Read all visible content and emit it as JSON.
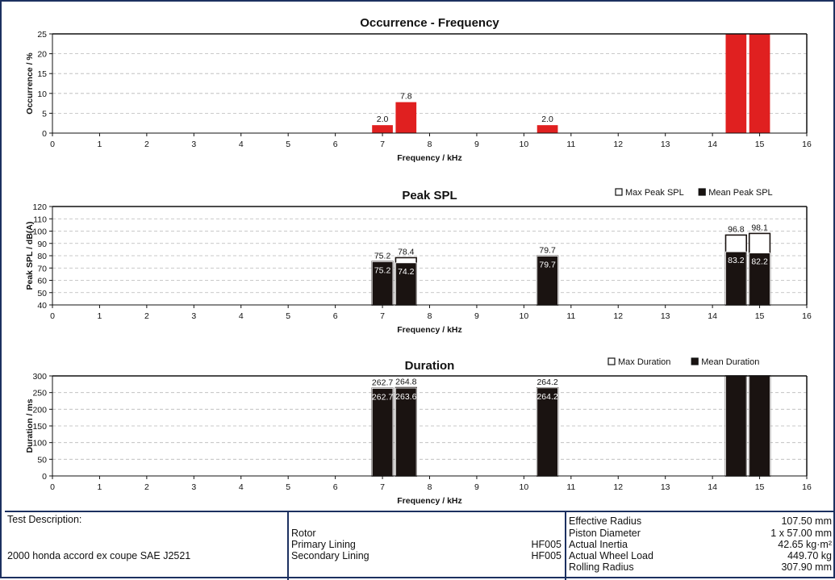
{
  "chart_data": [
    {
      "type": "bar",
      "title": "Occurrence - Frequency",
      "xlabel": "Frequency / kHz",
      "ylabel": "Occurrence / %",
      "xlim": [
        0,
        16
      ],
      "ylim": [
        0,
        25
      ],
      "xticks": [
        0,
        1,
        2,
        3,
        4,
        5,
        6,
        7,
        8,
        9,
        10,
        11,
        12,
        13,
        14,
        15,
        16
      ],
      "yticks": [
        0,
        5,
        10,
        15,
        20,
        25
      ],
      "grid": true,
      "legend": "none",
      "color": "#e02020",
      "series": [
        {
          "values": [
            {
              "x": 7.0,
              "value": 2.0,
              "label": "2.0"
            },
            {
              "x": 7.5,
              "value": 7.8,
              "label": "7.8"
            },
            {
              "x": 10.5,
              "value": 2.0,
              "label": "2.0"
            },
            {
              "x": 14.5,
              "value": 25,
              "label": ""
            },
            {
              "x": 15.0,
              "value": 25,
              "label": ""
            }
          ]
        }
      ]
    },
    {
      "type": "bar",
      "title": "Peak SPL",
      "xlabel": "Frequency / kHz",
      "ylabel": "Peak SPL / dB(A)",
      "xlim": [
        0,
        16
      ],
      "ylim": [
        40,
        120
      ],
      "xticks": [
        0,
        1,
        2,
        3,
        4,
        5,
        6,
        7,
        8,
        9,
        10,
        11,
        12,
        13,
        14,
        15,
        16
      ],
      "yticks": [
        40,
        50,
        60,
        70,
        80,
        90,
        100,
        110,
        120
      ],
      "grid": true,
      "legend": "top-right",
      "series": [
        {
          "name": "Max Peak SPL",
          "color": "#ffffff",
          "values": [
            {
              "x": 7.0,
              "value": 75.2,
              "label": "75.2"
            },
            {
              "x": 7.5,
              "value": 78.4,
              "label": "78.4"
            },
            {
              "x": 10.5,
              "value": 79.7,
              "label": "79.7"
            },
            {
              "x": 14.5,
              "value": 96.8,
              "label": "96.8"
            },
            {
              "x": 15.0,
              "value": 98.1,
              "label": "98.1"
            }
          ]
        },
        {
          "name": "Mean Peak SPL",
          "color": "#1a1311",
          "values": [
            {
              "x": 7.0,
              "value": 75.2,
              "label": "75.2"
            },
            {
              "x": 7.5,
              "value": 74.2,
              "label": "74.2"
            },
            {
              "x": 10.5,
              "value": 79.7,
              "label": "79.7"
            },
            {
              "x": 14.5,
              "value": 83.2,
              "label": "83.2"
            },
            {
              "x": 15.0,
              "value": 82.2,
              "label": "82.2"
            }
          ]
        }
      ]
    },
    {
      "type": "bar",
      "title": "Duration",
      "xlabel": "Frequency / kHz",
      "ylabel": "Duration / ms",
      "xlim": [
        0,
        16
      ],
      "ylim": [
        0,
        300
      ],
      "xticks": [
        0,
        1,
        2,
        3,
        4,
        5,
        6,
        7,
        8,
        9,
        10,
        11,
        12,
        13,
        14,
        15,
        16
      ],
      "yticks": [
        0,
        50,
        100,
        150,
        200,
        250,
        300
      ],
      "grid": true,
      "legend": "top-right",
      "series": [
        {
          "name": "Max Duration",
          "color": "#ffffff",
          "values": [
            {
              "x": 7.0,
              "value": 262.7,
              "label": "262.7"
            },
            {
              "x": 7.5,
              "value": 264.8,
              "label": "264.8"
            },
            {
              "x": 10.5,
              "value": 264.2,
              "label": "264.2"
            },
            {
              "x": 14.5,
              "value": 300,
              "label": ""
            },
            {
              "x": 15.0,
              "value": 300,
              "label": ""
            }
          ]
        },
        {
          "name": "Mean Duration",
          "color": "#1a1311",
          "values": [
            {
              "x": 7.0,
              "value": 262.7,
              "label": "262.7"
            },
            {
              "x": 7.5,
              "value": 263.6,
              "label": "263.6"
            },
            {
              "x": 10.5,
              "value": 264.2,
              "label": "264.2"
            },
            {
              "x": 14.5,
              "value": 300,
              "label": ""
            },
            {
              "x": 15.0,
              "value": 300,
              "label": ""
            }
          ]
        }
      ]
    }
  ],
  "info": {
    "test_description_label": "Test Description:",
    "test_description": "2000 honda accord ex coupe SAE J2521",
    "rotor_label": "Rotor",
    "rotor_value": "",
    "primary_lining_label": "Primary Lining",
    "primary_lining_value": "HF005",
    "secondary_lining_label": "Secondary Lining",
    "secondary_lining_value": "HF005",
    "specs": [
      {
        "label": "Effective Radius",
        "value": "107.50 mm"
      },
      {
        "label": "Piston Diameter",
        "value": "1 x 57.00 mm"
      },
      {
        "label": "Actual Inertia",
        "value": "42.65 kg·m²"
      },
      {
        "label": "Actual Wheel Load",
        "value": "449.70 kg"
      },
      {
        "label": "Rolling Radius",
        "value": "307.90 mm"
      }
    ]
  }
}
